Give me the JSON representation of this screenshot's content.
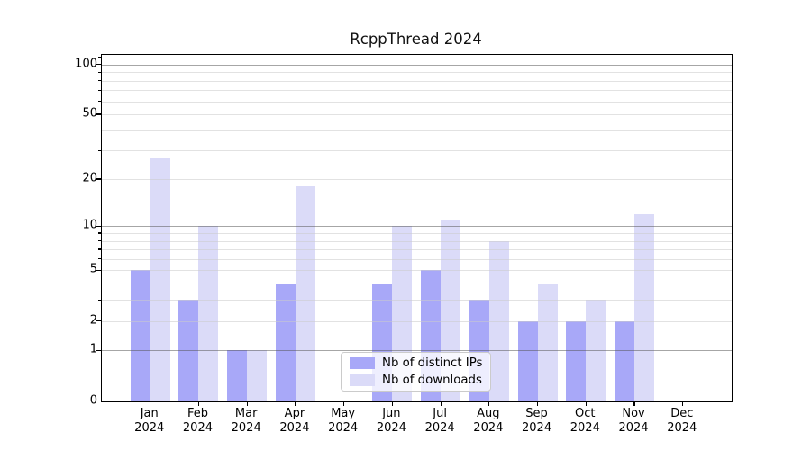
{
  "figure": {
    "title": "RcppThread 2024",
    "background": "#ffffff"
  },
  "legend": {
    "items": [
      {
        "label": "Nb of distinct IPs",
        "color": "#a8a8f8"
      },
      {
        "label": "Nb of downloads",
        "color": "#dbdbf8"
      }
    ]
  },
  "chart_data": {
    "type": "bar",
    "title": "RcppThread 2024",
    "categories": [
      "Jan",
      "Feb",
      "Mar",
      "Apr",
      "May",
      "Jun",
      "Jul",
      "Aug",
      "Sep",
      "Oct",
      "Nov",
      "Dec"
    ],
    "year_label": "2024",
    "series": [
      {
        "name": "Nb of distinct IPs",
        "color": "#a8a8f8",
        "values": [
          5,
          3,
          1,
          4,
          0,
          4,
          5,
          3,
          2,
          2,
          2,
          0
        ]
      },
      {
        "name": "Nb of downloads",
        "color": "#dbdbf8",
        "values": [
          27,
          10,
          1,
          18,
          0,
          10,
          11,
          8,
          4,
          3,
          12,
          0
        ]
      }
    ],
    "xlabel": "",
    "ylabel": "",
    "y_scale": "log1p",
    "y_ticks": [
      0,
      1,
      2,
      5,
      10,
      20,
      50,
      100
    ],
    "y_major_gridlines": [
      1,
      10,
      100
    ],
    "y_minor_gridlines": [
      2,
      3,
      4,
      5,
      6,
      7,
      8,
      9,
      20,
      30,
      40,
      50,
      60,
      70,
      80,
      90,
      110
    ],
    "ylim": [
      0,
      115
    ],
    "grid": true,
    "legend_position": "lower center-right"
  },
  "colors": {
    "major_grid": "#ababab",
    "minor_grid": "#e5e5e5",
    "axis": "#000000",
    "text": "#000000"
  }
}
